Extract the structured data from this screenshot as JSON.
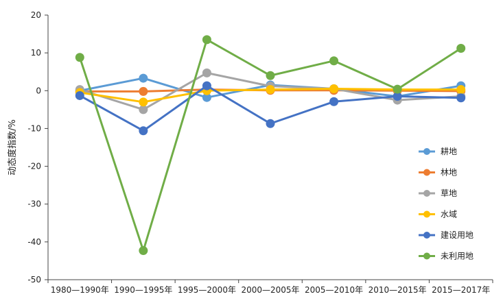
{
  "chart_data": {
    "type": "line",
    "title": "",
    "xlabel": "",
    "ylabel": "动态度指数/%",
    "ylim": [
      -50,
      20
    ],
    "yticks": [
      20,
      10,
      0,
      -10,
      -20,
      -30,
      -40,
      -50
    ],
    "grid": false,
    "legend_position": "right",
    "categories": [
      "1980—1990年",
      "1990—1995年",
      "1995—2000年",
      "2000—2005年",
      "2005—2010年",
      "2010—2015年",
      "2015—2017年"
    ],
    "series": [
      {
        "name": "耕地",
        "color": "#5b9bd5",
        "values": [
          0,
          3.3,
          -1.8,
          1.5,
          0.5,
          -1.5,
          1.3
        ]
      },
      {
        "name": "林地",
        "color": "#ed7d31",
        "values": [
          -0.2,
          -0.2,
          0.3,
          0.1,
          0.1,
          0,
          -0.1
        ]
      },
      {
        "name": "草地",
        "color": "#a5a5a5",
        "values": [
          0.3,
          -5,
          4.7,
          1.2,
          0.5,
          -2.5,
          -1.5
        ]
      },
      {
        "name": "水域",
        "color": "#ffc000",
        "values": [
          -0.5,
          -3,
          0,
          0.3,
          0.5,
          0.3,
          0.3
        ]
      },
      {
        "name": "建设用地",
        "color": "#4472c4",
        "values": [
          -1.3,
          -10.6,
          1.3,
          -8.7,
          -2.9,
          -1.5,
          -1.9
        ]
      },
      {
        "name": "未利用地",
        "color": "#70ad47",
        "values": [
          8.8,
          -42.3,
          13.5,
          4,
          7.9,
          0.4,
          11.2
        ]
      }
    ]
  }
}
